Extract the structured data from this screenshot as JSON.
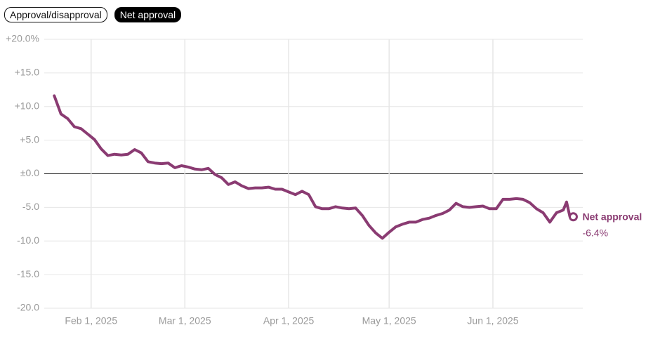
{
  "tabs": [
    "Approval/disapproval",
    "Net approval"
  ],
  "active_tab": 1,
  "chart_data": {
    "type": "line",
    "x": [
      "2025-01-21",
      "2025-01-23",
      "2025-01-25",
      "2025-01-27",
      "2025-01-29",
      "2025-01-31",
      "2025-02-02",
      "2025-02-04",
      "2025-02-06",
      "2025-02-08",
      "2025-02-10",
      "2025-02-12",
      "2025-02-14",
      "2025-02-16",
      "2025-02-18",
      "2025-02-20",
      "2025-02-22",
      "2025-02-24",
      "2025-02-26",
      "2025-02-28",
      "2025-03-02",
      "2025-03-04",
      "2025-03-06",
      "2025-03-08",
      "2025-03-10",
      "2025-03-12",
      "2025-03-14",
      "2025-03-16",
      "2025-03-18",
      "2025-03-20",
      "2025-03-22",
      "2025-03-24",
      "2025-03-26",
      "2025-03-28",
      "2025-03-30",
      "2025-04-01",
      "2025-04-03",
      "2025-04-05",
      "2025-04-07",
      "2025-04-09",
      "2025-04-11",
      "2025-04-13",
      "2025-04-15",
      "2025-04-17",
      "2025-04-19",
      "2025-04-21",
      "2025-04-23",
      "2025-04-25",
      "2025-04-27",
      "2025-04-29",
      "2025-05-01",
      "2025-05-03",
      "2025-05-05",
      "2025-05-07",
      "2025-05-09",
      "2025-05-11",
      "2025-05-13",
      "2025-05-15",
      "2025-05-17",
      "2025-05-19",
      "2025-05-21",
      "2025-05-23",
      "2025-05-25",
      "2025-05-27",
      "2025-05-29",
      "2025-05-31",
      "2025-06-02",
      "2025-06-04",
      "2025-06-06",
      "2025-06-08",
      "2025-06-10",
      "2025-06-12",
      "2025-06-14",
      "2025-06-16",
      "2025-06-18",
      "2025-06-20",
      "2025-06-22",
      "2025-06-23",
      "2025-06-24",
      "2025-06-25"
    ],
    "series": [
      {
        "name": "Net approval",
        "color": "#8a3b72",
        "values": [
          11.6,
          8.9,
          8.2,
          7.0,
          6.7,
          5.9,
          5.1,
          3.7,
          2.7,
          2.9,
          2.8,
          2.9,
          3.6,
          3.1,
          1.8,
          1.6,
          1.5,
          1.6,
          0.9,
          1.2,
          1.0,
          0.7,
          0.6,
          0.8,
          -0.1,
          -0.6,
          -1.6,
          -1.2,
          -1.8,
          -2.2,
          -2.1,
          -2.1,
          -2.0,
          -2.3,
          -2.3,
          -2.7,
          -3.1,
          -2.6,
          -3.1,
          -4.9,
          -5.2,
          -5.2,
          -4.9,
          -5.1,
          -5.2,
          -5.1,
          -6.2,
          -7.7,
          -8.8,
          -9.6,
          -8.7,
          -7.9,
          -7.5,
          -7.2,
          -7.2,
          -6.8,
          -6.6,
          -6.2,
          -5.9,
          -5.4,
          -4.4,
          -4.9,
          -5.0,
          -4.9,
          -4.8,
          -5.2,
          -5.2,
          -3.8,
          -3.8,
          -3.7,
          -3.8,
          -4.3,
          -5.2,
          -5.8,
          -7.2,
          -5.8,
          -5.4,
          -4.2,
          -6.4,
          -6.4
        ],
        "value_labels": [
          null,
          null,
          null,
          null,
          null,
          null,
          null,
          null,
          null,
          null,
          null,
          null,
          null,
          null,
          null,
          null,
          null,
          null,
          null,
          null,
          null,
          null,
          null,
          null,
          null,
          null,
          null,
          null,
          null,
          null,
          null,
          null,
          null,
          null,
          null,
          null,
          null,
          null,
          null,
          null,
          null,
          null,
          null,
          null,
          null,
          null,
          null,
          null,
          null,
          null,
          null,
          null,
          null,
          null,
          null,
          null,
          null,
          null,
          null,
          null,
          null,
          null,
          null,
          null,
          null,
          null,
          null,
          null,
          null,
          null,
          null,
          null,
          null,
          null,
          null,
          null,
          null,
          null,
          null,
          "-6.4%"
        ]
      }
    ],
    "xlim": [
      "2025-01-18",
      "2025-06-27"
    ],
    "xticks": [
      {
        "value": "2025-02-01",
        "label": "Feb 1, 2025"
      },
      {
        "value": "2025-03-01",
        "label": "Mar 1, 2025"
      },
      {
        "value": "2025-04-01",
        "label": "Apr 1, 2025"
      },
      {
        "value": "2025-05-01",
        "label": "May 1, 2025"
      },
      {
        "value": "2025-06-01",
        "label": "Jun 1, 2025"
      }
    ],
    "ylim": [
      -20,
      20
    ],
    "yticks": [
      {
        "value": 20,
        "label": "+20.0%"
      },
      {
        "value": 15,
        "label": "+15.0"
      },
      {
        "value": 10,
        "label": "+10.0"
      },
      {
        "value": 5,
        "label": "+5.0"
      },
      {
        "value": 0,
        "label": "±0.0"
      },
      {
        "value": -5,
        "label": "-5.0"
      },
      {
        "value": -10,
        "label": "-10.0"
      },
      {
        "value": -15,
        "label": "-15.0"
      },
      {
        "value": -20,
        "label": "-20.0"
      }
    ],
    "grid": true
  }
}
